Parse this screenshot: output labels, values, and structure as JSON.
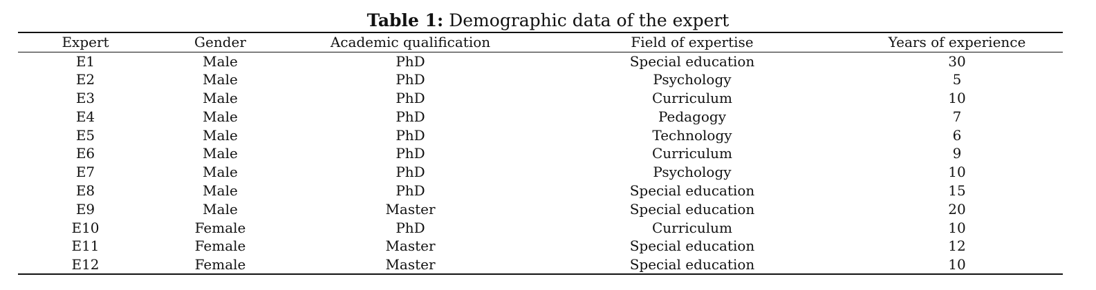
{
  "caption": {
    "label": "Table 1:",
    "text": "Demographic data of the expert"
  },
  "table": {
    "headers": [
      "Expert",
      "Gender",
      "Academic qualification",
      "Field of expertise",
      "Years of experience"
    ],
    "rows": [
      [
        "E1",
        "Male",
        "PhD",
        "Special education",
        "30"
      ],
      [
        "E2",
        "Male",
        "PhD",
        "Psychology",
        "5"
      ],
      [
        "E3",
        "Male",
        "PhD",
        "Curriculum",
        "10"
      ],
      [
        "E4",
        "Male",
        "PhD",
        "Pedagogy",
        "7"
      ],
      [
        "E5",
        "Male",
        "PhD",
        "Technology",
        "6"
      ],
      [
        "E6",
        "Male",
        "PhD",
        "Curriculum",
        "9"
      ],
      [
        "E7",
        "Male",
        "PhD",
        "Psychology",
        "10"
      ],
      [
        "E8",
        "Male",
        "PhD",
        "Special education",
        "15"
      ],
      [
        "E9",
        "Male",
        "Master",
        "Special education",
        "20"
      ],
      [
        "E10",
        "Female",
        "PhD",
        "Curriculum",
        "10"
      ],
      [
        "E11",
        "Female",
        "Master",
        "Special education",
        "12"
      ],
      [
        "E12",
        "Female",
        "Master",
        "Special education",
        "10"
      ]
    ]
  }
}
